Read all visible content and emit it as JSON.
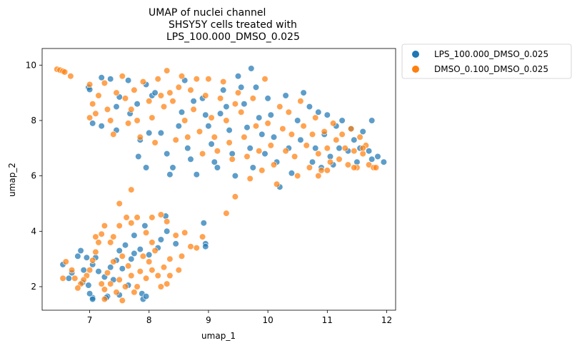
{
  "chart_data": {
    "type": "scatter",
    "title_lines": [
      "UMAP of nuclei channel",
      "SHSY5Y cells treated with",
      "LPS_100.000_DMSO_0.025"
    ],
    "xlabel": "umap_1",
    "ylabel": "umap_2",
    "xlim": [
      6.2,
      12.15
    ],
    "ylim": [
      1.15,
      10.6
    ],
    "xticks": [
      7,
      8,
      9,
      10,
      11,
      12
    ],
    "yticks": [
      2,
      4,
      6,
      8,
      10
    ],
    "legend_position": "outside-top-right",
    "series": [
      {
        "name": "LPS_100.000_DMSO_0.025",
        "color": "#1f77b4",
        "points": [
          [
            6.98,
            9.2
          ],
          [
            7.0,
            9.12
          ],
          [
            7.2,
            9.55
          ],
          [
            7.35,
            9.5
          ],
          [
            7.05,
            7.9
          ],
          [
            7.2,
            7.8
          ],
          [
            7.45,
            7.65
          ],
          [
            7.5,
            8.85
          ],
          [
            7.45,
            8.5
          ],
          [
            7.65,
            9.45
          ],
          [
            7.68,
            8.25
          ],
          [
            7.8,
            8.6
          ],
          [
            7.85,
            7.3
          ],
          [
            7.82,
            6.7
          ],
          [
            7.95,
            9.3
          ],
          [
            8.05,
            8.9
          ],
          [
            8.0,
            7.55
          ],
          [
            7.95,
            6.3
          ],
          [
            8.1,
            9.0
          ],
          [
            8.2,
            7.55
          ],
          [
            8.3,
            6.8
          ],
          [
            8.35,
            6.05
          ],
          [
            8.4,
            6.3
          ],
          [
            8.5,
            7.8
          ],
          [
            8.55,
            8.3
          ],
          [
            8.6,
            9.45
          ],
          [
            8.65,
            7.0
          ],
          [
            8.7,
            6.6
          ],
          [
            8.75,
            8.7
          ],
          [
            8.8,
            6.05
          ],
          [
            8.9,
            8.8
          ],
          [
            8.95,
            8.2
          ],
          [
            9.0,
            7.8
          ],
          [
            9.05,
            7.15
          ],
          [
            9.1,
            6.5
          ],
          [
            9.15,
            6.3
          ],
          [
            9.2,
            8.25
          ],
          [
            9.25,
            9.1
          ],
          [
            9.3,
            8.5
          ],
          [
            9.35,
            7.65
          ],
          [
            9.4,
            6.8
          ],
          [
            9.45,
            6.0
          ],
          [
            9.5,
            9.6
          ],
          [
            9.55,
            9.2
          ],
          [
            9.6,
            8.6
          ],
          [
            9.65,
            7.75
          ],
          [
            9.7,
            7.0
          ],
          [
            9.75,
            6.3
          ],
          [
            9.8,
            9.2
          ],
          [
            9.85,
            8.1
          ],
          [
            9.9,
            7.5
          ],
          [
            9.95,
            6.8
          ],
          [
            10.0,
            8.8
          ],
          [
            10.05,
            8.2
          ],
          [
            10.1,
            7.4
          ],
          [
            10.15,
            6.5
          ],
          [
            10.2,
            5.6
          ],
          [
            10.3,
            8.9
          ],
          [
            10.35,
            7.0
          ],
          [
            10.4,
            6.1
          ],
          [
            10.5,
            8.0
          ],
          [
            10.55,
            7.3
          ],
          [
            10.6,
            9.0
          ],
          [
            10.7,
            8.5
          ],
          [
            10.75,
            6.5
          ],
          [
            10.8,
            7.0
          ],
          [
            10.85,
            8.3
          ],
          [
            10.9,
            6.3
          ],
          [
            10.95,
            7.5
          ],
          [
            11.0,
            8.2
          ],
          [
            11.05,
            6.7
          ],
          [
            11.1,
            6.4
          ],
          [
            11.15,
            7.8
          ],
          [
            11.2,
            7.0
          ],
          [
            11.25,
            8.0
          ],
          [
            11.35,
            6.9
          ],
          [
            11.4,
            7.7
          ],
          [
            11.45,
            7.3
          ],
          [
            11.5,
            6.5
          ],
          [
            11.55,
            7.0
          ],
          [
            11.6,
            7.6
          ],
          [
            11.7,
            6.9
          ],
          [
            11.75,
            6.6
          ],
          [
            11.85,
            6.7
          ],
          [
            11.95,
            6.5
          ],
          [
            11.75,
            8.0
          ],
          [
            9.72,
            9.88
          ],
          [
            8.92,
            4.3
          ],
          [
            8.95,
            3.55
          ],
          [
            8.95,
            3.45
          ],
          [
            8.45,
            3.55
          ],
          [
            8.28,
            4.55
          ],
          [
            8.3,
            4.0
          ],
          [
            8.2,
            3.7
          ],
          [
            8.15,
            3.4
          ],
          [
            7.93,
            4.2
          ],
          [
            8.0,
            3.15
          ],
          [
            7.85,
            3.35
          ],
          [
            7.75,
            3.85
          ],
          [
            7.7,
            3.0
          ],
          [
            7.6,
            3.5
          ],
          [
            7.55,
            2.65
          ],
          [
            7.65,
            2.05
          ],
          [
            7.5,
            1.7
          ],
          [
            7.4,
            2.25
          ],
          [
            7.3,
            1.65
          ],
          [
            7.28,
            1.6
          ],
          [
            7.05,
            1.6
          ],
          [
            7.05,
            1.55
          ],
          [
            7.0,
            1.75
          ],
          [
            6.98,
            2.05
          ],
          [
            6.88,
            2.15
          ],
          [
            6.9,
            2.6
          ],
          [
            7.05,
            2.8
          ],
          [
            7.1,
            3.05
          ],
          [
            6.95,
            3.05
          ],
          [
            6.85,
            3.3
          ],
          [
            6.8,
            3.1
          ],
          [
            6.7,
            2.5
          ],
          [
            6.65,
            2.3
          ],
          [
            6.55,
            2.8
          ],
          [
            7.15,
            2.55
          ],
          [
            7.25,
            2.35
          ],
          [
            7.35,
            2.7
          ],
          [
            7.5,
            3.3
          ],
          [
            7.45,
            2.95
          ],
          [
            7.75,
            3.2
          ],
          [
            7.88,
            1.75
          ],
          [
            7.9,
            1.55
          ],
          [
            7.95,
            1.65
          ]
        ]
      },
      {
        "name": "DMSO_0.100_DMSO_0.025",
        "color": "#ff7f0e",
        "points": [
          [
            6.45,
            9.85
          ],
          [
            6.5,
            9.82
          ],
          [
            6.55,
            9.78
          ],
          [
            6.58,
            9.75
          ],
          [
            6.68,
            9.6
          ],
          [
            7.0,
            9.3
          ],
          [
            7.05,
            8.6
          ],
          [
            7.0,
            8.1
          ],
          [
            7.1,
            8.25
          ],
          [
            7.15,
            8.9
          ],
          [
            7.25,
            9.35
          ],
          [
            7.3,
            8.4
          ],
          [
            7.35,
            8.0
          ],
          [
            7.4,
            7.5
          ],
          [
            7.45,
            9.0
          ],
          [
            7.55,
            9.6
          ],
          [
            7.6,
            8.8
          ],
          [
            7.65,
            7.9
          ],
          [
            7.7,
            8.4
          ],
          [
            7.75,
            9.1
          ],
          [
            7.8,
            8.0
          ],
          [
            7.85,
            7.4
          ],
          [
            7.9,
            9.4
          ],
          [
            8.0,
            8.7
          ],
          [
            8.05,
            8.1
          ],
          [
            8.1,
            7.2
          ],
          [
            8.15,
            9.5
          ],
          [
            8.2,
            8.9
          ],
          [
            8.25,
            8.5
          ],
          [
            8.3,
            9.8
          ],
          [
            8.35,
            9.0
          ],
          [
            8.4,
            8.7
          ],
          [
            8.45,
            7.3
          ],
          [
            8.5,
            9.2
          ],
          [
            8.55,
            9.6
          ],
          [
            8.6,
            8.0
          ],
          [
            8.65,
            7.4
          ],
          [
            8.7,
            9.1
          ],
          [
            8.75,
            8.4
          ],
          [
            8.8,
            9.5
          ],
          [
            8.85,
            7.6
          ],
          [
            8.9,
            6.8
          ],
          [
            8.95,
            8.9
          ],
          [
            9.0,
            9.5
          ],
          [
            9.05,
            8.1
          ],
          [
            9.1,
            7.4
          ],
          [
            9.15,
            6.9
          ],
          [
            9.2,
            8.8
          ],
          [
            9.25,
            9.4
          ],
          [
            9.3,
            8.0
          ],
          [
            9.35,
            7.2
          ],
          [
            9.4,
            6.6
          ],
          [
            9.45,
            8.6
          ],
          [
            9.5,
            9.0
          ],
          [
            9.55,
            8.3
          ],
          [
            9.6,
            7.4
          ],
          [
            9.65,
            6.7
          ],
          [
            9.7,
            5.9
          ],
          [
            9.75,
            8.8
          ],
          [
            9.8,
            7.8
          ],
          [
            9.85,
            6.9
          ],
          [
            9.9,
            6.2
          ],
          [
            9.95,
            9.5
          ],
          [
            10.0,
            7.9
          ],
          [
            10.05,
            7.1
          ],
          [
            10.1,
            6.4
          ],
          [
            10.15,
            5.7
          ],
          [
            10.2,
            8.5
          ],
          [
            10.25,
            7.7
          ],
          [
            10.3,
            6.9
          ],
          [
            10.35,
            8.3
          ],
          [
            10.4,
            7.5
          ],
          [
            10.45,
            6.7
          ],
          [
            10.5,
            6.0
          ],
          [
            10.55,
            8.7
          ],
          [
            10.6,
            7.8
          ],
          [
            10.65,
            7.1
          ],
          [
            10.7,
            6.3
          ],
          [
            10.75,
            7.5
          ],
          [
            10.8,
            8.1
          ],
          [
            10.85,
            6.8
          ],
          [
            10.9,
            6.2
          ],
          [
            10.95,
            7.6
          ],
          [
            11.0,
            7.0
          ],
          [
            11.05,
            6.5
          ],
          [
            11.1,
            7.9
          ],
          [
            11.15,
            7.3
          ],
          [
            11.2,
            6.6
          ],
          [
            11.25,
            7.5
          ],
          [
            11.3,
            7.0
          ],
          [
            11.35,
            6.4
          ],
          [
            11.4,
            7.7
          ],
          [
            11.45,
            6.9
          ],
          [
            11.5,
            6.3
          ],
          [
            11.55,
            7.4
          ],
          [
            11.6,
            6.8
          ],
          [
            11.65,
            7.1
          ],
          [
            11.7,
            6.4
          ],
          [
            11.78,
            6.3
          ],
          [
            11.82,
            6.3
          ],
          [
            11.6,
            7.0
          ],
          [
            11.45,
            6.3
          ],
          [
            10.85,
            6.0
          ],
          [
            11.0,
            6.2
          ],
          [
            9.45,
            5.25
          ],
          [
            9.3,
            4.65
          ],
          [
            8.9,
            3.8
          ],
          [
            8.6,
            3.95
          ],
          [
            8.45,
            3.85
          ],
          [
            8.3,
            4.35
          ],
          [
            8.2,
            4.6
          ],
          [
            8.05,
            4.5
          ],
          [
            7.95,
            3.95
          ],
          [
            7.8,
            4.5
          ],
          [
            7.7,
            4.3
          ],
          [
            7.62,
            4.5
          ],
          [
            7.5,
            5.0
          ],
          [
            7.7,
            5.5
          ],
          [
            7.4,
            3.8
          ],
          [
            7.35,
            3.6
          ],
          [
            7.25,
            4.2
          ],
          [
            7.2,
            3.9
          ],
          [
            7.15,
            3.6
          ],
          [
            7.1,
            3.25
          ],
          [
            7.05,
            2.95
          ],
          [
            7.0,
            2.6
          ],
          [
            6.95,
            2.4
          ],
          [
            6.9,
            2.25
          ],
          [
            6.85,
            2.1
          ],
          [
            6.8,
            1.95
          ],
          [
            6.75,
            2.3
          ],
          [
            6.7,
            2.6
          ],
          [
            6.6,
            2.9
          ],
          [
            6.55,
            2.3
          ],
          [
            7.2,
            2.1
          ],
          [
            7.25,
            1.9
          ],
          [
            7.3,
            2.5
          ],
          [
            7.35,
            2.1
          ],
          [
            7.4,
            2.9
          ],
          [
            7.45,
            1.8
          ],
          [
            7.5,
            2.25
          ],
          [
            7.6,
            2.0
          ],
          [
            7.65,
            2.75
          ],
          [
            7.7,
            2.4
          ],
          [
            7.75,
            1.8
          ],
          [
            7.8,
            2.0
          ],
          [
            7.85,
            2.55
          ],
          [
            7.9,
            3.1
          ],
          [
            7.95,
            2.3
          ],
          [
            8.0,
            2.9
          ],
          [
            8.05,
            2.6
          ],
          [
            8.1,
            3.3
          ],
          [
            8.15,
            2.4
          ],
          [
            8.2,
            2.0
          ],
          [
            8.25,
            2.7
          ],
          [
            8.3,
            2.1
          ],
          [
            8.35,
            3.0
          ],
          [
            8.05,
            3.6
          ],
          [
            8.35,
            2.4
          ],
          [
            8.5,
            2.6
          ],
          [
            8.55,
            3.1
          ],
          [
            8.7,
            3.45
          ],
          [
            8.8,
            3.4
          ],
          [
            7.55,
            3.1
          ],
          [
            7.1,
            3.8
          ],
          [
            7.5,
            4.2
          ],
          [
            7.25,
            1.55
          ],
          [
            7.55,
            1.5
          ]
        ]
      }
    ]
  }
}
